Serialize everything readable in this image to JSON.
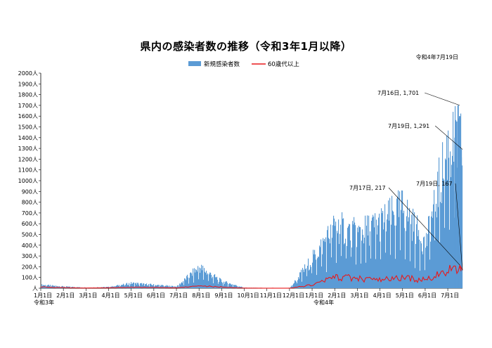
{
  "chart_data": {
    "type": "bar",
    "title": "県内の感染者数の推移（令和3年1月以降）",
    "subtitle": "令和4年7月19日",
    "ylim": [
      0,
      2000
    ],
    "ytick_labels": [
      "人",
      "100人",
      "200人",
      "300人",
      "400人",
      "500人",
      "600人",
      "700人",
      "800人",
      "900人",
      "1000人",
      "1100人",
      "1200人",
      "1300人",
      "1400人",
      "1500人",
      "1600人",
      "1700人",
      "1800人",
      "1900人",
      "2000人"
    ],
    "xtick_labels": [
      "1月1日",
      "2月1日",
      "3月1日",
      "4月1日",
      "5月1日",
      "6月1日",
      "7月1日",
      "8月1日",
      "9月1日",
      "10月1日",
      "11月1日",
      "12月1日",
      "1月1日",
      "2月1日",
      "3月1日",
      "4月1日",
      "5月1日",
      "6月1日",
      "7月1日"
    ],
    "era_labels": [
      "令和3年",
      "令和4年"
    ],
    "legend_position": "top-center",
    "grid": false,
    "series": [
      {
        "name": "新規感染者数",
        "kind": "bar",
        "color": "#5b9bd5",
        "monthly_peaks": [
          {
            "month": "1月1日",
            "value": 40
          },
          {
            "month": "2月1日",
            "value": 20
          },
          {
            "month": "3月1日",
            "value": 8
          },
          {
            "month": "4月1日",
            "value": 15
          },
          {
            "month": "5月1日",
            "value": 60
          },
          {
            "month": "6月1日",
            "value": 40
          },
          {
            "month": "7月1日",
            "value": 20
          },
          {
            "month": "8月1日",
            "value": 250
          },
          {
            "month": "9月1日",
            "value": 80
          },
          {
            "month": "10月1日",
            "value": 6
          },
          {
            "month": "11月1日",
            "value": 3
          },
          {
            "month": "12月1日",
            "value": 3
          },
          {
            "month": "1月1日",
            "value": 350
          },
          {
            "month": "2月1日",
            "value": 740
          },
          {
            "month": "3月1日",
            "value": 650
          },
          {
            "month": "4月1日",
            "value": 770
          },
          {
            "month": "5月1日",
            "value": 960
          },
          {
            "month": "6月1日",
            "value": 520
          },
          {
            "month": "7月1日",
            "value": 1701
          }
        ]
      },
      {
        "name": "60歳代以上",
        "kind": "line",
        "color": "#e8191b",
        "monthly_peaks": [
          {
            "month": "1月1日",
            "value": 15
          },
          {
            "month": "2月1日",
            "value": 8
          },
          {
            "month": "3月1日",
            "value": 3
          },
          {
            "month": "4月1日",
            "value": 5
          },
          {
            "month": "5月1日",
            "value": 12
          },
          {
            "month": "6月1日",
            "value": 10
          },
          {
            "month": "7月1日",
            "value": 5
          },
          {
            "month": "8月1日",
            "value": 30
          },
          {
            "month": "9月1日",
            "value": 15
          },
          {
            "month": "10月1日",
            "value": 2
          },
          {
            "month": "11月1日",
            "value": 1
          },
          {
            "month": "12月1日",
            "value": 1
          },
          {
            "month": "1月1日",
            "value": 40
          },
          {
            "month": "2月1日",
            "value": 140
          },
          {
            "month": "3月1日",
            "value": 120
          },
          {
            "month": "4月1日",
            "value": 100
          },
          {
            "month": "5月1日",
            "value": 130
          },
          {
            "month": "6月1日",
            "value": 100
          },
          {
            "month": "7月1日",
            "value": 217
          }
        ]
      }
    ],
    "annotations": [
      {
        "text": "7月16日, 1,701",
        "series": 0,
        "value": 1701
      },
      {
        "text": "7月19日, 1,291",
        "series": 0,
        "value": 1291
      },
      {
        "text": "7月17日, 217",
        "series": 1,
        "value": 217
      },
      {
        "text": "7月19日, 167",
        "series": 1,
        "value": 167
      }
    ]
  }
}
